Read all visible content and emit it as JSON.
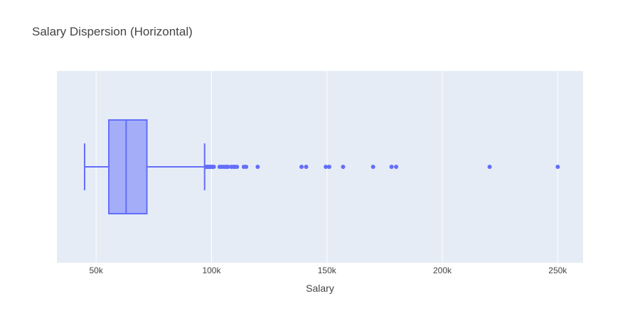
{
  "chart_data": {
    "type": "box",
    "orientation": "horizontal",
    "title": "Salary Dispersion (Horizontal)",
    "xlabel": "Salary",
    "ylabel": "",
    "xlim": [
      33000,
      261000
    ],
    "grid": true,
    "ticks": [
      {
        "value": 50000,
        "label": "50k"
      },
      {
        "value": 100000,
        "label": "100k"
      },
      {
        "value": 150000,
        "label": "150k"
      },
      {
        "value": 200000,
        "label": "200k"
      },
      {
        "value": 250000,
        "label": "250k"
      }
    ],
    "colors": {
      "plot_background": "#e5ecf6",
      "gridline": "#ffffff",
      "box_line": "#636efa",
      "box_fill": "#636efa",
      "outlier": "#636efa",
      "text": "#444444"
    },
    "box": {
      "lower_fence": 45000,
      "q1": 55500,
      "median": 63000,
      "q3": 72000,
      "upper_fence": 97000
    },
    "outliers": [
      97500,
      98000,
      98500,
      99000,
      99500,
      100000,
      100500,
      101000,
      103500,
      104500,
      105500,
      106500,
      107000,
      108500,
      109500,
      110000,
      111000,
      114000,
      115000,
      120000,
      139000,
      141000,
      149500,
      151000,
      157000,
      170000,
      178000,
      180000,
      220500,
      250000
    ]
  }
}
